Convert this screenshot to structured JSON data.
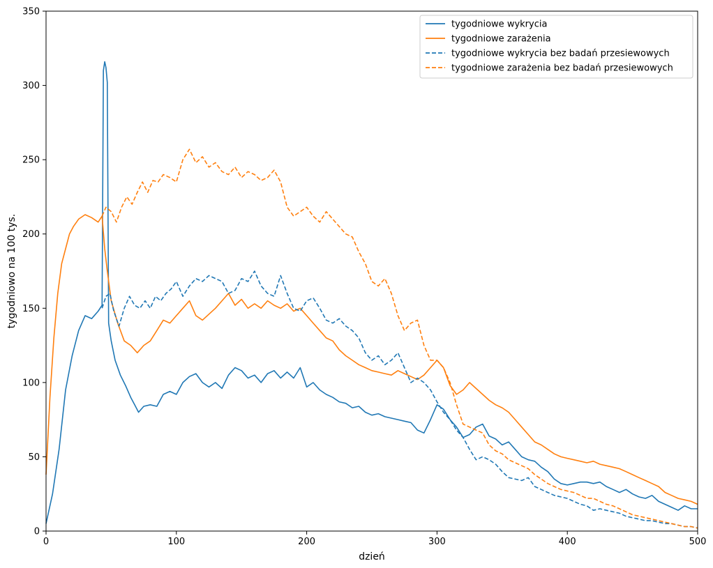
{
  "chart_data": {
    "type": "line",
    "title": "",
    "xlabel": "dzień",
    "ylabel": "tygodniowo na 100 tys.",
    "xlim": [
      0,
      500
    ],
    "ylim": [
      0,
      350
    ],
    "xticks": [
      0,
      100,
      200,
      300,
      400,
      500
    ],
    "yticks": [
      0,
      50,
      100,
      150,
      200,
      250,
      300,
      350
    ],
    "grid": false,
    "legend_position": "top-right",
    "series": [
      {
        "name": "tygodniowe wykrycia",
        "color": "#1f77b4",
        "dash": "solid",
        "x": [
          0,
          5,
          10,
          15,
          20,
          25,
          30,
          35,
          40,
          43,
          44,
          45,
          46,
          47,
          48,
          50,
          53,
          57,
          61,
          65,
          68,
          71,
          75,
          80,
          85,
          90,
          95,
          100,
          105,
          110,
          115,
          120,
          125,
          130,
          135,
          140,
          145,
          150,
          155,
          160,
          165,
          170,
          175,
          180,
          185,
          190,
          195,
          200,
          205,
          210,
          215,
          220,
          225,
          230,
          235,
          240,
          245,
          250,
          255,
          260,
          265,
          270,
          275,
          280,
          285,
          290,
          295,
          300,
          305,
          310,
          315,
          320,
          325,
          330,
          335,
          340,
          345,
          350,
          355,
          360,
          365,
          370,
          375,
          380,
          385,
          390,
          395,
          400,
          405,
          410,
          415,
          420,
          425,
          430,
          435,
          440,
          445,
          450,
          455,
          460,
          465,
          470,
          475,
          480,
          485,
          490,
          495,
          500
        ],
        "y": [
          5,
          25,
          55,
          95,
          118,
          135,
          145,
          143,
          148,
          152,
          310,
          316,
          312,
          302,
          140,
          128,
          115,
          105,
          98,
          90,
          85,
          80,
          84,
          85,
          84,
          92,
          94,
          92,
          100,
          104,
          106,
          100,
          97,
          100,
          96,
          105,
          110,
          108,
          103,
          105,
          100,
          106,
          108,
          103,
          107,
          103,
          110,
          97,
          100,
          95,
          92,
          90,
          87,
          86,
          83,
          84,
          80,
          78,
          79,
          77,
          76,
          75,
          74,
          73,
          68,
          66,
          75,
          85,
          82,
          75,
          70,
          63,
          65,
          70,
          72,
          64,
          62,
          58,
          60,
          55,
          50,
          48,
          47,
          43,
          40,
          35,
          32,
          31,
          32,
          33,
          33,
          32,
          33,
          30,
          28,
          26,
          28,
          25,
          23,
          22,
          24,
          20,
          18,
          16,
          14,
          17,
          15,
          15
        ]
      },
      {
        "name": "tygodniowe zarażenia",
        "color": "#ff7f0e",
        "dash": "solid",
        "x": [
          0,
          3,
          6,
          9,
          12,
          15,
          18,
          21,
          25,
          30,
          35,
          40,
          43,
          45,
          47,
          50,
          55,
          60,
          65,
          70,
          75,
          80,
          85,
          90,
          95,
          100,
          105,
          110,
          115,
          120,
          125,
          130,
          135,
          140,
          145,
          150,
          155,
          160,
          165,
          170,
          175,
          180,
          185,
          190,
          195,
          200,
          205,
          210,
          215,
          220,
          225,
          230,
          235,
          240,
          245,
          250,
          255,
          260,
          265,
          270,
          275,
          280,
          285,
          290,
          295,
          300,
          305,
          310,
          315,
          320,
          325,
          330,
          335,
          340,
          345,
          350,
          355,
          360,
          365,
          370,
          375,
          380,
          385,
          390,
          395,
          400,
          405,
          410,
          415,
          420,
          425,
          430,
          435,
          440,
          445,
          450,
          455,
          460,
          465,
          470,
          475,
          480,
          485,
          490,
          495,
          500
        ],
        "y": [
          38,
          90,
          130,
          160,
          180,
          190,
          200,
          205,
          210,
          213,
          211,
          208,
          212,
          190,
          175,
          155,
          140,
          128,
          125,
          120,
          125,
          128,
          135,
          142,
          140,
          145,
          150,
          155,
          145,
          142,
          146,
          150,
          155,
          160,
          152,
          156,
          150,
          153,
          150,
          155,
          152,
          150,
          153,
          148,
          150,
          145,
          140,
          135,
          130,
          128,
          122,
          118,
          115,
          112,
          110,
          108,
          107,
          106,
          105,
          108,
          106,
          104,
          102,
          105,
          110,
          115,
          110,
          98,
          92,
          95,
          100,
          96,
          92,
          88,
          85,
          83,
          80,
          75,
          70,
          65,
          60,
          58,
          55,
          52,
          50,
          49,
          48,
          47,
          46,
          47,
          45,
          44,
          43,
          42,
          40,
          38,
          36,
          34,
          32,
          30,
          26,
          24,
          22,
          21,
          20,
          18
        ]
      },
      {
        "name": "tygodniowe wykrycia bez badań przesiewowych",
        "color": "#1f77b4",
        "dash": "dashed",
        "x": [
          43,
          46,
          49,
          52,
          56,
          60,
          64,
          68,
          72,
          76,
          80,
          84,
          88,
          92,
          96,
          100,
          105,
          110,
          115,
          120,
          125,
          130,
          135,
          140,
          145,
          150,
          155,
          160,
          165,
          170,
          175,
          180,
          185,
          190,
          195,
          200,
          205,
          210,
          215,
          220,
          225,
          230,
          235,
          240,
          245,
          250,
          255,
          260,
          265,
          270,
          275,
          280,
          285,
          290,
          295,
          300,
          305,
          310,
          315,
          320,
          325,
          330,
          335,
          340,
          345,
          350,
          355,
          360,
          365,
          370,
          375,
          380,
          385,
          390,
          395,
          400,
          405,
          410,
          415,
          420,
          425,
          430,
          435,
          440,
          445,
          450,
          455,
          460,
          465,
          470,
          475,
          480,
          485,
          490,
          495,
          500
        ],
        "y": [
          150,
          158,
          160,
          148,
          138,
          150,
          158,
          152,
          150,
          155,
          150,
          158,
          155,
          160,
          163,
          168,
          158,
          165,
          170,
          168,
          172,
          170,
          168,
          160,
          162,
          170,
          168,
          175,
          165,
          160,
          158,
          172,
          160,
          150,
          148,
          155,
          157,
          150,
          142,
          140,
          143,
          138,
          135,
          130,
          120,
          115,
          118,
          112,
          115,
          120,
          110,
          100,
          103,
          100,
          95,
          87,
          80,
          75,
          68,
          63,
          55,
          48,
          50,
          48,
          45,
          40,
          36,
          35,
          34,
          36,
          30,
          28,
          26,
          24,
          23,
          22,
          20,
          18,
          17,
          14,
          15,
          14,
          13,
          12,
          10,
          9,
          8,
          7,
          7,
          6,
          5,
          5,
          4,
          3,
          3,
          2
        ]
      },
      {
        "name": "tygodniowe zarażenia bez badań przesiewowych",
        "color": "#ff7f0e",
        "dash": "dashed",
        "x": [
          43,
          46,
          50,
          54,
          58,
          62,
          66,
          70,
          74,
          78,
          82,
          86,
          90,
          95,
          100,
          105,
          110,
          115,
          120,
          125,
          130,
          135,
          140,
          145,
          150,
          155,
          160,
          165,
          170,
          175,
          180,
          185,
          190,
          195,
          200,
          205,
          210,
          215,
          220,
          225,
          230,
          235,
          240,
          245,
          250,
          255,
          260,
          265,
          270,
          275,
          280,
          285,
          290,
          295,
          300,
          305,
          310,
          315,
          320,
          325,
          330,
          335,
          340,
          345,
          350,
          355,
          360,
          365,
          370,
          375,
          380,
          385,
          390,
          395,
          400,
          405,
          410,
          415,
          420,
          425,
          430,
          435,
          440,
          445,
          450,
          455,
          460,
          465,
          470,
          475,
          480,
          485,
          490,
          495,
          500
        ],
        "y": [
          212,
          218,
          215,
          208,
          218,
          225,
          220,
          228,
          235,
          228,
          236,
          235,
          240,
          238,
          235,
          250,
          257,
          248,
          252,
          245,
          248,
          242,
          240,
          245,
          238,
          242,
          240,
          236,
          238,
          243,
          235,
          218,
          212,
          215,
          218,
          212,
          208,
          215,
          210,
          205,
          200,
          198,
          188,
          180,
          168,
          165,
          170,
          160,
          145,
          135,
          140,
          142,
          125,
          115,
          115,
          110,
          100,
          85,
          72,
          70,
          68,
          66,
          58,
          54,
          52,
          48,
          46,
          44,
          42,
          38,
          35,
          32,
          30,
          28,
          27,
          26,
          24,
          22,
          22,
          20,
          18,
          17,
          15,
          13,
          11,
          10,
          9,
          8,
          7,
          6,
          5,
          4,
          3,
          3,
          2
        ]
      }
    ]
  }
}
